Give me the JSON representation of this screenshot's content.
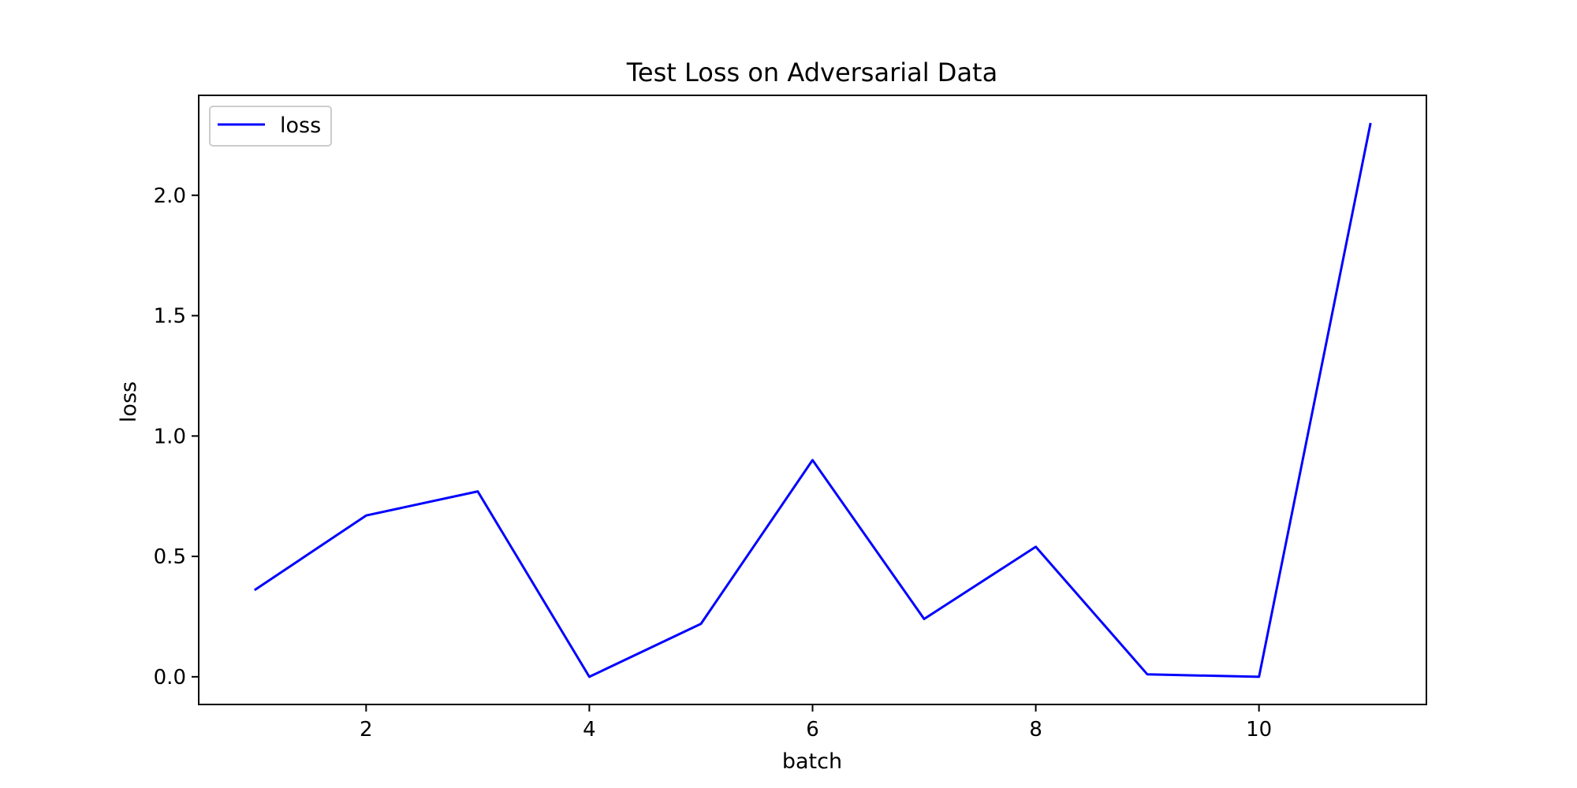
{
  "chart_data": {
    "type": "line",
    "title": "Test Loss on Adversarial Data",
    "xlabel": "batch",
    "ylabel": "loss",
    "x": [
      1,
      2,
      3,
      4,
      5,
      6,
      7,
      8,
      9,
      10,
      11
    ],
    "series": [
      {
        "name": "loss",
        "color": "#0000ff",
        "values": [
          0.36,
          0.67,
          0.77,
          0.0,
          0.22,
          0.9,
          0.24,
          0.54,
          0.01,
          0.0,
          2.3
        ]
      }
    ],
    "xlim": [
      0.5,
      11.5
    ],
    "ylim": [
      -0.115,
      2.415
    ],
    "xticks": [
      2,
      4,
      6,
      8,
      10
    ],
    "xtick_labels": [
      "2",
      "4",
      "6",
      "8",
      "10"
    ],
    "yticks": [
      0.0,
      0.5,
      1.0,
      1.5,
      2.0
    ],
    "ytick_labels": [
      "0.0",
      "0.5",
      "1.0",
      "1.5",
      "2.0"
    ],
    "grid": false,
    "legend_position": "upper-left"
  }
}
